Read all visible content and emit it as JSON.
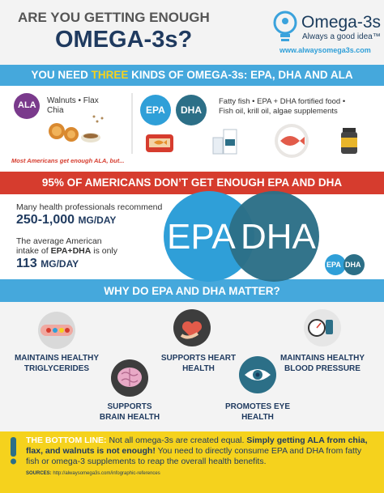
{
  "header": {
    "title_line1": "ARE YOU GETTING ENOUGH",
    "title_line2": "OMEGA-3s?",
    "logo_name": "Omega-3s",
    "logo_tagline": "Always a good idea™",
    "url": "www.alwaysomega3s.com"
  },
  "kinds": {
    "banner_before": "YOU NEED",
    "banner_highlight": "THREE",
    "banner_after": "KINDS OF OMEGA-3s: EPA, DHA AND ALA",
    "ala_badge": "ALA",
    "ala_sources_line1": "Walnuts • Flax",
    "ala_sources_line2": "Chia",
    "epa_badge": "EPA",
    "dha_badge": "DHA",
    "epa_dha_sources_line1": "Fatty fish • EPA + DHA fortified food •",
    "epa_dha_sources_line2": "Fish oil, krill oil, algae supplements",
    "note": "Most Americans get enough ALA, but..."
  },
  "gap": {
    "banner": "95% OF AMERICANS DON’T GET ENOUGH EPA AND DHA",
    "recommend_text": "Many health professionals recommend",
    "recommend_amount": "250-1,000",
    "recommend_unit": "MG/DAY",
    "average_line1": "The average American",
    "average_line2_before": "intake of",
    "average_line2_bold": "EPA+DHA",
    "average_line2_after": "is only",
    "average_amount": "113",
    "average_unit": "MG/DAY",
    "big_epa": "EPA",
    "big_dha": "DHA",
    "small_epa": "EPA",
    "small_dha": "DHA"
  },
  "benefits": {
    "banner": "WHY DO EPA AND DHA MATTER?",
    "items": [
      {
        "lines": [
          "MAINTAINS HEALTHY",
          "TRIGLYCERIDES"
        ]
      },
      {
        "lines": [
          "SUPPORTS HEART",
          "HEALTH"
        ]
      },
      {
        "lines": [
          "MAINTAINS HEALTHY",
          "BLOOD PRESSURE"
        ]
      },
      {
        "lines": [
          "SUPPORTS",
          "BRAIN HEALTH"
        ]
      },
      {
        "lines": [
          "PROMOTES EYE",
          "HEALTH"
        ]
      }
    ]
  },
  "bottom_line": {
    "label": "THE BOTTOM LINE:",
    "text1": "Not all omega-3s are created equal.",
    "text_bold": "Simply getting ALA from chia, flax, and walnuts is not enough!",
    "text2": "You need to directly consume EPA and DHA from fatty fish or omega-3 supplements to reap the overall health benefits.",
    "sources_label": "SOURCES:",
    "sources_url": "http://alwaysomega3s.com/infographic-references"
  }
}
